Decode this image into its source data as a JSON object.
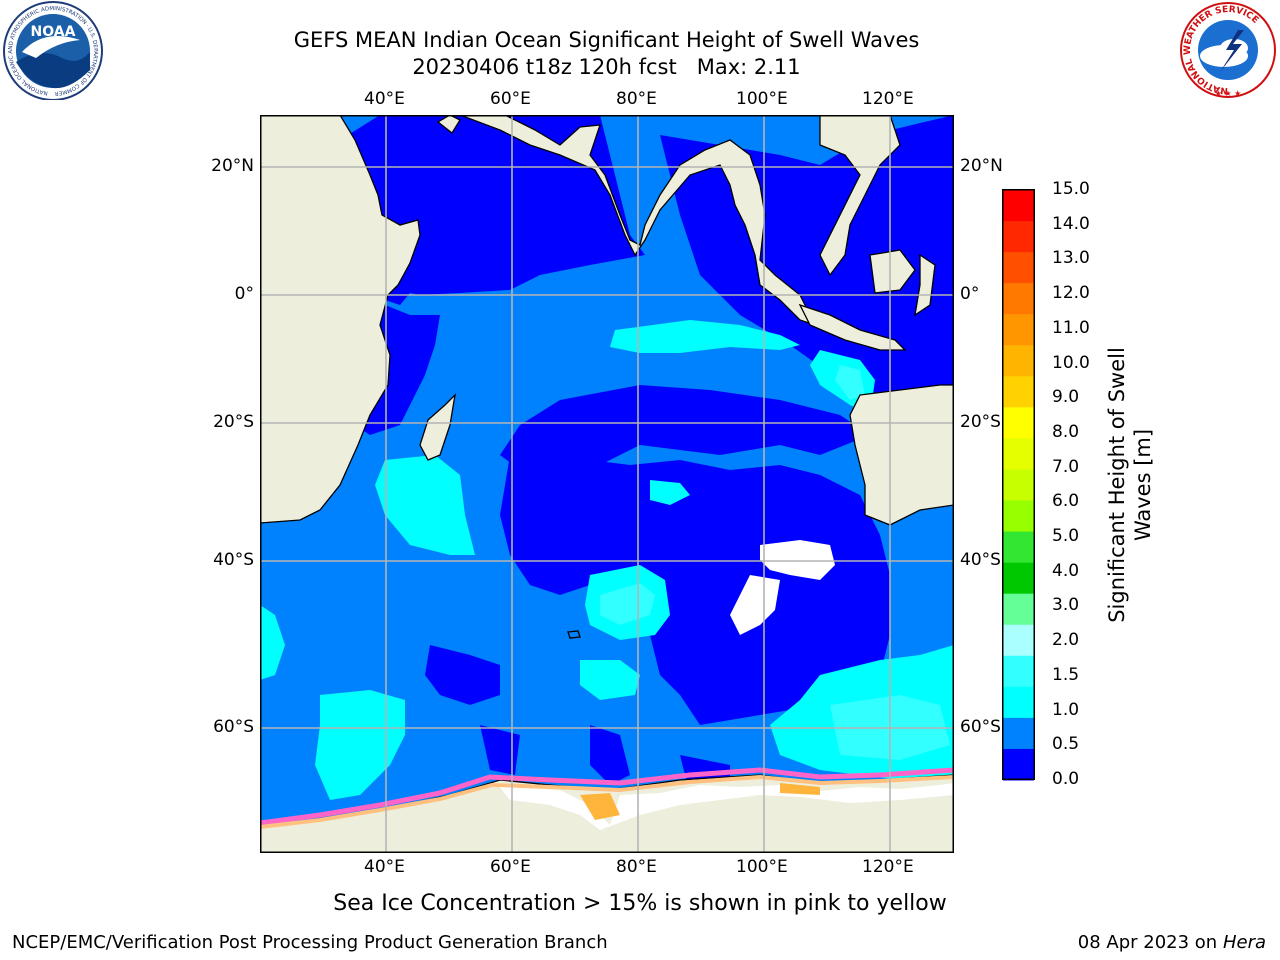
{
  "title": {
    "line1": "GEFS MEAN Indian Ocean Significant Height of Swell Waves",
    "line2": "20230406 t18z 120h fcst   Max: 2.11"
  },
  "map": {
    "lon_ticks": [
      "40°E",
      "60°E",
      "80°E",
      "100°E",
      "120°E"
    ],
    "lat_ticks_left": [
      "20°N",
      "0°",
      "20°S",
      "40°S",
      "60°S"
    ],
    "lat_ticks_right": [
      "20°N",
      "0°",
      "20°S",
      "40°S",
      "60°S"
    ],
    "land_color": "#eeeedc",
    "grid_color": "#b4b4b4"
  },
  "colorbar": {
    "title_line1": "Significant Height of Swell",
    "title_line2": "Waves [m]",
    "labels": [
      "15.0",
      "14.0",
      "13.0",
      "12.0",
      "11.0",
      "10.0",
      "9.0",
      "8.0",
      "7.0",
      "6.0",
      "5.0",
      "4.0",
      "3.0",
      "2.0",
      "1.5",
      "1.0",
      "0.5",
      "0.0"
    ],
    "colors": [
      "#ff0000",
      "#ff2800",
      "#ff5000",
      "#ff7800",
      "#ff9600",
      "#ffb400",
      "#ffd200",
      "#ffff00",
      "#e6ff00",
      "#c8ff00",
      "#96ff00",
      "#32e632",
      "#00c800",
      "#64ff96",
      "#aaffff",
      "#32ffff",
      "#00ffff",
      "#0082ff",
      "#0000ff"
    ]
  },
  "caption": "Sea Ice Concentration > 15% is shown in pink to yellow",
  "footer": {
    "left": "NCEP/EMC/Verification Post Processing Product Generation Branch",
    "right_date": "08 Apr 2023 on ",
    "right_machine": "Hera"
  },
  "logos": {
    "noaa_text": "NOAA",
    "noaa_ring": "NATIONAL OCEANIC AND ATMOSPHERIC ADMINISTRATION · U.S. DEPARTMENT OF COMMERCE",
    "nws_ring": "NATIONAL WEATHER SERVICE"
  }
}
